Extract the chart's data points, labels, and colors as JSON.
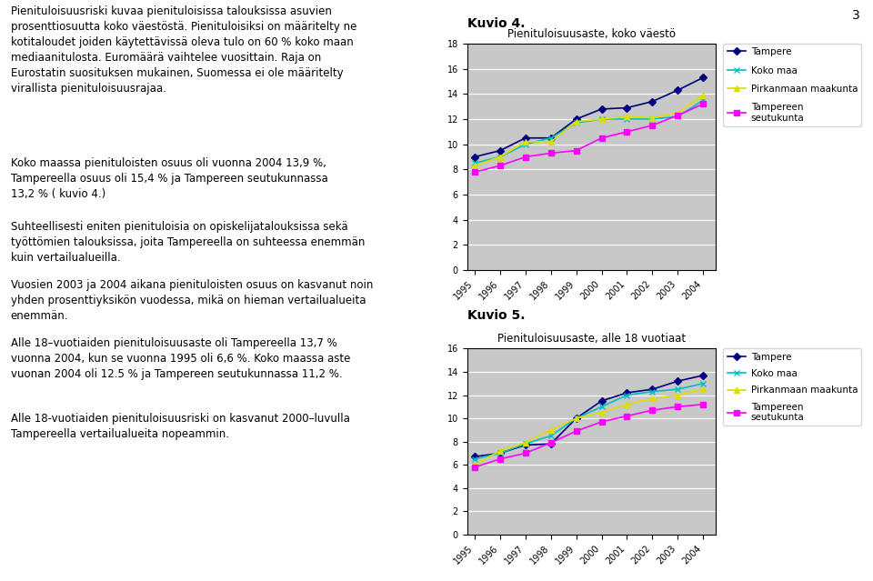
{
  "years": [
    1995,
    1996,
    1997,
    1998,
    1999,
    2000,
    2001,
    2002,
    2003,
    2004
  ],
  "chart1": {
    "title": "Pienituloisuusaste, koko väestö",
    "ylim": [
      0,
      18
    ],
    "yticks": [
      0,
      2,
      4,
      6,
      8,
      10,
      12,
      14,
      16,
      18
    ],
    "tampere": [
      9.0,
      9.5,
      10.5,
      10.5,
      12.0,
      12.8,
      12.9,
      13.4,
      14.3,
      15.3
    ],
    "koko_maa": [
      8.5,
      9.0,
      10.0,
      10.5,
      11.7,
      12.0,
      12.0,
      12.0,
      12.2,
      13.5
    ],
    "pirkanmaa": [
      8.3,
      9.0,
      10.2,
      10.2,
      11.8,
      12.0,
      12.2,
      12.1,
      12.5,
      13.9
    ],
    "seutukunta": [
      7.8,
      8.3,
      9.0,
      9.3,
      9.5,
      10.5,
      11.0,
      11.5,
      12.3,
      13.2
    ]
  },
  "chart2": {
    "title": "Pienituloisuusaste, alle 18 vuotiaat",
    "ylim": [
      0,
      16
    ],
    "yticks": [
      0,
      2,
      4,
      6,
      8,
      10,
      12,
      14,
      16
    ],
    "tampere": [
      6.7,
      7.0,
      7.7,
      7.8,
      10.0,
      11.5,
      12.2,
      12.5,
      13.2,
      13.7
    ],
    "koko_maa": [
      6.5,
      7.0,
      7.8,
      8.5,
      10.0,
      11.0,
      12.0,
      12.3,
      12.5,
      13.0
    ],
    "pirkanmaa": [
      6.0,
      7.2,
      7.9,
      9.0,
      10.0,
      10.5,
      11.2,
      11.7,
      12.0,
      12.5
    ],
    "seutukunta": [
      5.8,
      6.5,
      7.0,
      7.9,
      8.9,
      9.7,
      10.2,
      10.7,
      11.0,
      11.2
    ]
  },
  "legend_labels": [
    "Tampere",
    "Koko maa",
    "Pirkanmaan maakunta",
    "Tampereen\nseutukunta"
  ],
  "colors": {
    "tampere": "#000080",
    "koko_maa": "#00BFBF",
    "pirkanmaa": "#DDDD00",
    "seutukunta": "#FF00FF"
  },
  "markers": {
    "tampere": "D",
    "koko_maa": "x",
    "pirkanmaa": "^",
    "seutukunta": "s"
  },
  "kuvio4_label": "Kuvio 4.",
  "kuvio5_label": "Kuvio 5.",
  "plot_bg": "#C8C8C8",
  "page_number": "3"
}
